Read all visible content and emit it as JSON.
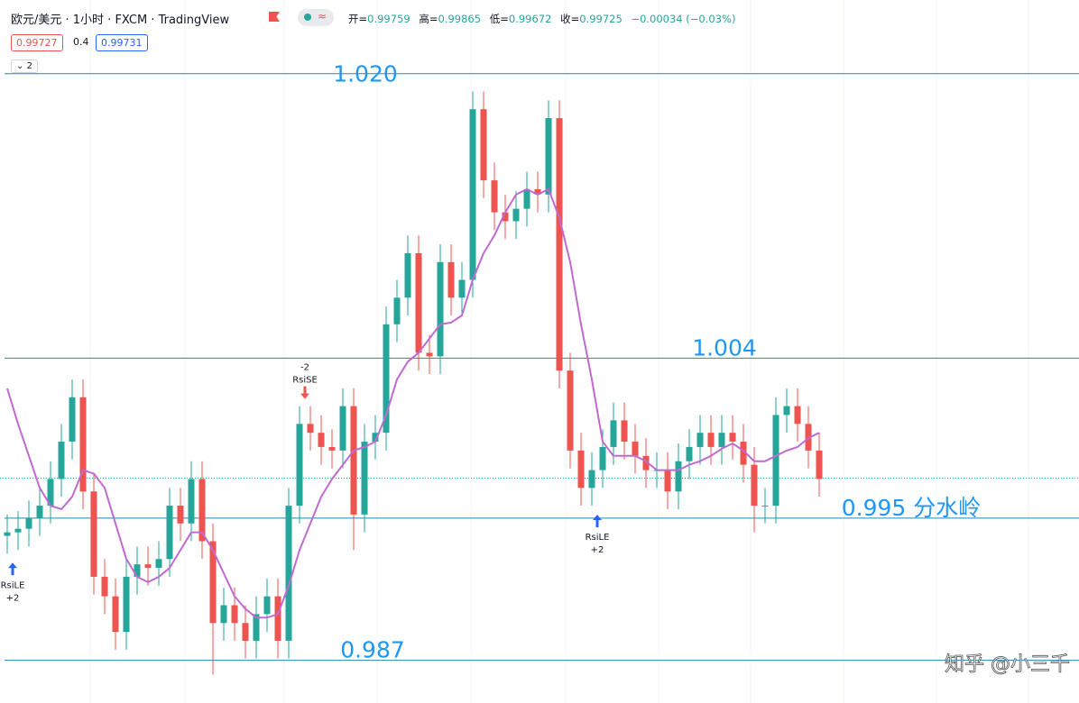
{
  "header": {
    "title": "欧元/美元 · 1小时 · FXCM · TradingView",
    "ohlc": [
      {
        "label": "开=",
        "value": 0.99759
      },
      {
        "label": "高=",
        "value": 0.99865
      },
      {
        "label": "低=",
        "value": 0.99672
      },
      {
        "label": "收=",
        "value": 0.99725
      }
    ],
    "change": "−0.00034 (−0.03%)",
    "bid": 0.99727,
    "spread": 0.4,
    "ask": 0.99731,
    "collapse_count": 2
  },
  "chart_data": {
    "type": "candlestick",
    "up_color": "#26a69a",
    "down_color": "#ef5350",
    "open": [
      0.994,
      0.9942,
      0.9944,
      0.995,
      0.9957,
      0.9972,
      0.9993,
      1.0018,
      0.9965,
      0.9917,
      0.9906,
      0.9886,
      0.9917,
      0.9924,
      0.9922,
      0.9927,
      0.9957,
      0.9947,
      0.9972,
      0.9937,
      0.9891,
      0.9901,
      0.9891,
      0.9881,
      0.9896,
      0.9906,
      0.9881,
      0.9957,
      1.0003,
      0.9998,
      0.999,
      0.9988,
      1.0013,
      0.9952,
      0.9993,
      0.9998,
      1.0059,
      1.0074,
      1.0099,
      1.0043,
      1.0041,
      1.0094,
      1.0074,
      1.0084,
      1.018,
      1.014,
      1.0122,
      1.0117,
      1.0124,
      1.0135,
      1.0132,
      1.0175,
      1.0033,
      0.9988,
      0.9967,
      0.9977,
      0.999,
      1.0005,
      0.9993,
      0.9985,
      0.9977,
      0.9977,
      0.9965,
      0.9982,
      0.999,
      0.9998,
      0.999,
      0.9998,
      0.9993,
      0.998,
      0.9957,
      0.9957,
      1.0008,
      1.0013,
      1.0003,
      0.9988
    ],
    "high": [
      0.9952,
      0.9954,
      0.996,
      0.9967,
      0.9982,
      1.0003,
      1.0028,
      1.0028,
      0.9975,
      0.9927,
      0.9916,
      0.9927,
      0.9934,
      0.9934,
      0.9937,
      0.9967,
      0.9967,
      0.9982,
      0.9982,
      0.9947,
      0.9911,
      0.9911,
      0.9901,
      0.9906,
      0.9916,
      0.9916,
      0.9967,
      1.0013,
      1.0013,
      1.0008,
      1.0,
      1.0023,
      1.0023,
      1.0003,
      1.0008,
      1.0069,
      1.0084,
      1.0109,
      1.0109,
      1.0053,
      1.0104,
      1.0104,
      1.0094,
      1.019,
      1.019,
      1.015,
      1.0132,
      1.0134,
      1.0145,
      1.0145,
      1.0185,
      1.0185,
      1.0043,
      0.9998,
      0.9987,
      1.0,
      1.0015,
      1.0015,
      1.0003,
      0.9995,
      0.9987,
      0.9987,
      0.9992,
      1.0,
      1.0008,
      1.0008,
      1.0008,
      1.0008,
      1.0003,
      0.999,
      0.9967,
      1.0018,
      1.0023,
      1.0023,
      1.0013,
      0.9998
    ],
    "low": [
      0.993,
      0.9932,
      0.9934,
      0.994,
      0.9947,
      0.9962,
      0.9983,
      0.9955,
      0.9907,
      0.9896,
      0.9876,
      0.9876,
      0.9907,
      0.9912,
      0.9912,
      0.9917,
      0.9937,
      0.9937,
      0.9927,
      0.9862,
      0.9881,
      0.9881,
      0.9871,
      0.9871,
      0.9886,
      0.9871,
      0.9871,
      0.9947,
      0.9988,
      0.998,
      0.9978,
      0.9978,
      0.9932,
      0.9942,
      0.9983,
      0.9988,
      1.0049,
      1.0064,
      1.0033,
      1.0031,
      1.0031,
      1.0064,
      1.0064,
      1.0074,
      1.013,
      1.0112,
      1.0107,
      1.0107,
      1.0114,
      1.0122,
      1.0122,
      1.0023,
      0.9978,
      0.9957,
      0.9957,
      0.9967,
      0.998,
      0.9983,
      0.9975,
      0.9967,
      0.9967,
      0.9955,
      0.9955,
      0.9972,
      0.998,
      0.998,
      0.998,
      0.9983,
      0.997,
      0.9942,
      0.9947,
      0.9947,
      0.9998,
      0.9993,
      0.9978,
      0.9962
    ],
    "close": [
      0.9942,
      0.9944,
      0.995,
      0.9957,
      0.9972,
      0.9993,
      1.0018,
      0.9965,
      0.9917,
      0.9906,
      0.9886,
      0.9917,
      0.9924,
      0.9922,
      0.9927,
      0.9957,
      0.9947,
      0.9972,
      0.9937,
      0.9891,
      0.9901,
      0.9891,
      0.9881,
      0.9896,
      0.9906,
      0.9881,
      0.9957,
      1.0003,
      0.9998,
      0.999,
      0.9988,
      1.0013,
      0.9952,
      0.9993,
      0.9998,
      1.0059,
      1.0074,
      1.0099,
      1.0043,
      1.0041,
      1.0094,
      1.0074,
      1.0084,
      1.018,
      1.014,
      1.0122,
      1.0117,
      1.0124,
      1.0135,
      1.0132,
      1.0175,
      1.0033,
      0.9988,
      0.9967,
      0.9977,
      0.999,
      1.0005,
      0.9993,
      0.9985,
      0.9977,
      0.9977,
      0.9965,
      0.9982,
      0.999,
      0.9998,
      0.999,
      0.9998,
      0.9993,
      0.998,
      0.9957,
      0.9957,
      1.0008,
      1.0013,
      1.0003,
      0.9988,
      0.9972
    ],
    "ma": {
      "color": "#c06ad0",
      "values": [
        1.0023,
        1.0003,
        0.9985,
        0.9967,
        0.9957,
        0.9955,
        0.9962,
        0.9977,
        0.9975,
        0.9967,
        0.9947,
        0.9927,
        0.9917,
        0.9914,
        0.9917,
        0.9922,
        0.9932,
        0.9942,
        0.9942,
        0.9932,
        0.9919,
        0.9906,
        0.9899,
        0.9894,
        0.9894,
        0.9896,
        0.9912,
        0.9932,
        0.9947,
        0.9962,
        0.9972,
        0.998,
        0.9988,
        0.999,
        0.9993,
        1.0008,
        1.0028,
        1.0038,
        1.0043,
        1.0051,
        1.0059,
        1.006,
        1.0064,
        1.0084,
        1.0099,
        1.0109,
        1.0122,
        1.0132,
        1.0135,
        1.0132,
        1.0135,
        1.0119,
        1.0094,
        1.0059,
        1.0028,
        0.9993,
        0.9985,
        0.9985,
        0.9985,
        0.9982,
        0.9977,
        0.9977,
        0.9977,
        0.998,
        0.9982,
        0.9985,
        0.9989,
        0.9992,
        0.9988,
        0.9982,
        0.9982,
        0.9985,
        0.9988,
        0.999,
        0.9995,
        0.9998
      ]
    },
    "ylim": [
      0.9846,
      1.021
    ],
    "level_color": "#1e88b8",
    "label_color": "#2196f3",
    "levels": [
      {
        "value": 1.02,
        "label": "1.020"
      },
      {
        "value": 1.004,
        "label": "1.004"
      },
      {
        "value": 0.995,
        "label": "0.995 分水岭"
      },
      {
        "value": 0.987,
        "label": "0.987"
      }
    ],
    "signals": [
      {
        "index": 0,
        "side": "long",
        "name": "RsiLE",
        "qty": "+2"
      },
      {
        "index": 27,
        "side": "short",
        "name": "RsiSE",
        "qty": "-2"
      },
      {
        "index": 54,
        "side": "long",
        "name": "RsiLE",
        "qty": "+2"
      }
    ],
    "watermark": "知乎 @小三千"
  }
}
